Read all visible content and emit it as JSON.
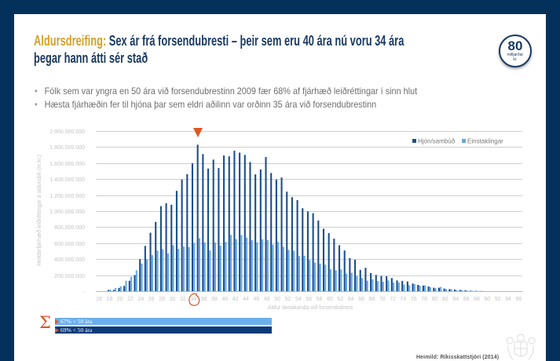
{
  "slide": {
    "title_accent": "Aldursdreifing:",
    "title_rest": " Sex ár frá forsendubresti – þeir sem eru 40 ára nú voru 34 ára",
    "title_line2": "þegar hann átti sér stað",
    "badge": {
      "number": "80",
      "unit_line1": "milljarðar",
      "unit_line2": "kr."
    },
    "bullets": [
      "Fólk sem var yngra en 50 ára við forsendubrestinn 2009 fær 68% af fjárhæð leiðréttingar í sinn hlut",
      "Hæsta fjárhæðin fer til hjóna þar sem eldri aðilinn var orðinn 35 ára við forsendubrestinn"
    ],
    "bullet_symbol": "•",
    "source": "Heimild: Ríkisskattstjóri (2014)",
    "colors": {
      "frame": "#04315C",
      "title": "#1B3A63",
      "title_accent": "#D4A027",
      "annotation_orange": "#E0561E"
    }
  },
  "summary": {
    "symbol": "Σ",
    "bars": [
      {
        "label": "67% < 50 ára",
        "series": "Einstaklingar",
        "color": "#6BB0EC"
      },
      {
        "label": "69%  < 50 ára",
        "series": "Hjón/sambúð",
        "color": "#0B3B7A"
      }
    ]
  },
  "chart_data": {
    "type": "bar",
    "title": "",
    "xlabel": "Aldur lántakanda við forsendubrest",
    "ylabel": "Heildarfjárhæð leiðréttingar á aldursbili (m.kr.)",
    "y_unit": "million kr",
    "xlim": [
      16,
      96
    ],
    "ylim": [
      0,
      2000
    ],
    "y_tick_step": 200,
    "y_ticks": [
      "-",
      "200.000.000",
      "400.000.000",
      "600.000.000",
      "800.000.000",
      "1.000.000.000",
      "1.200.000.000",
      "1.400.000.000",
      "1.600.000.000",
      "1.800.000.000",
      "2.000.000.000"
    ],
    "x_ticks": [
      "16",
      "18",
      "20",
      "22",
      "24",
      "26",
      "28",
      "30",
      "32",
      "34",
      "36",
      "38",
      "40",
      "42",
      "44",
      "46",
      "48",
      "50",
      "52",
      "54",
      "56",
      "58",
      "60",
      "62",
      "64",
      "66",
      "68",
      "70",
      "72",
      "74",
      "76",
      "78",
      "80",
      "82",
      "84",
      "86",
      "88",
      "90",
      "92",
      "94",
      "96"
    ],
    "grid": true,
    "legend_position": "top-right",
    "categories": [
      18,
      19,
      20,
      21,
      22,
      23,
      24,
      25,
      26,
      27,
      28,
      29,
      30,
      31,
      32,
      33,
      34,
      35,
      36,
      37,
      38,
      39,
      40,
      41,
      42,
      43,
      44,
      45,
      46,
      47,
      48,
      49,
      50,
      51,
      52,
      53,
      54,
      55,
      56,
      57,
      58,
      59,
      60,
      61,
      62,
      63,
      64,
      65,
      66,
      67,
      68,
      69,
      70,
      71,
      72,
      73,
      74,
      75,
      76,
      77,
      78,
      79,
      80,
      81,
      82,
      83,
      84,
      85,
      86,
      87,
      88,
      89
    ],
    "series": [
      {
        "name": "Hjón/sambúð",
        "color": "#1C4F8F",
        "values": [
          15,
          16,
          40,
          65,
          130,
          200,
          400,
          565,
          730,
          865,
          1062,
          1098,
          1079,
          1253,
          1394,
          1462,
          1597,
          1830,
          1712,
          1531,
          1643,
          1538,
          1695,
          1685,
          1754,
          1731,
          1702,
          1613,
          1459,
          1521,
          1676,
          1476,
          1394,
          1420,
          1243,
          1174,
          1138,
          1036,
          997,
          974,
          882,
          780,
          725,
          656,
          574,
          508,
          413,
          393,
          266,
          292,
          226,
          203,
          190,
          187,
          164,
          134,
          128,
          121,
          95,
          79,
          69,
          59,
          43,
          43,
          33,
          25,
          20,
          15,
          10,
          6,
          4,
          2
        ]
      },
      {
        "name": "Einstaklingar",
        "color": "#62A8E2",
        "values": [
          20,
          40,
          60,
          130,
          180,
          260,
          345,
          400,
          450,
          505,
          525,
          472,
          574,
          528,
          557,
          551,
          603,
          662,
          607,
          508,
          607,
          570,
          616,
          702,
          649,
          702,
          669,
          636,
          610,
          649,
          639,
          580,
          616,
          554,
          515,
          505,
          439,
          443,
          390,
          357,
          344,
          331,
          275,
          259,
          272,
          220,
          230,
          190,
          164,
          131,
          148,
          125,
          118,
          134,
          108,
          108,
          82,
          75,
          89,
          69,
          72,
          49,
          36,
          52,
          26,
          25,
          15,
          15,
          8,
          5,
          3,
          2
        ]
      }
    ],
    "annotations": {
      "peak_marker": {
        "shape": "down-triangle",
        "at_age": 35
      },
      "circled_tick": "34"
    }
  }
}
